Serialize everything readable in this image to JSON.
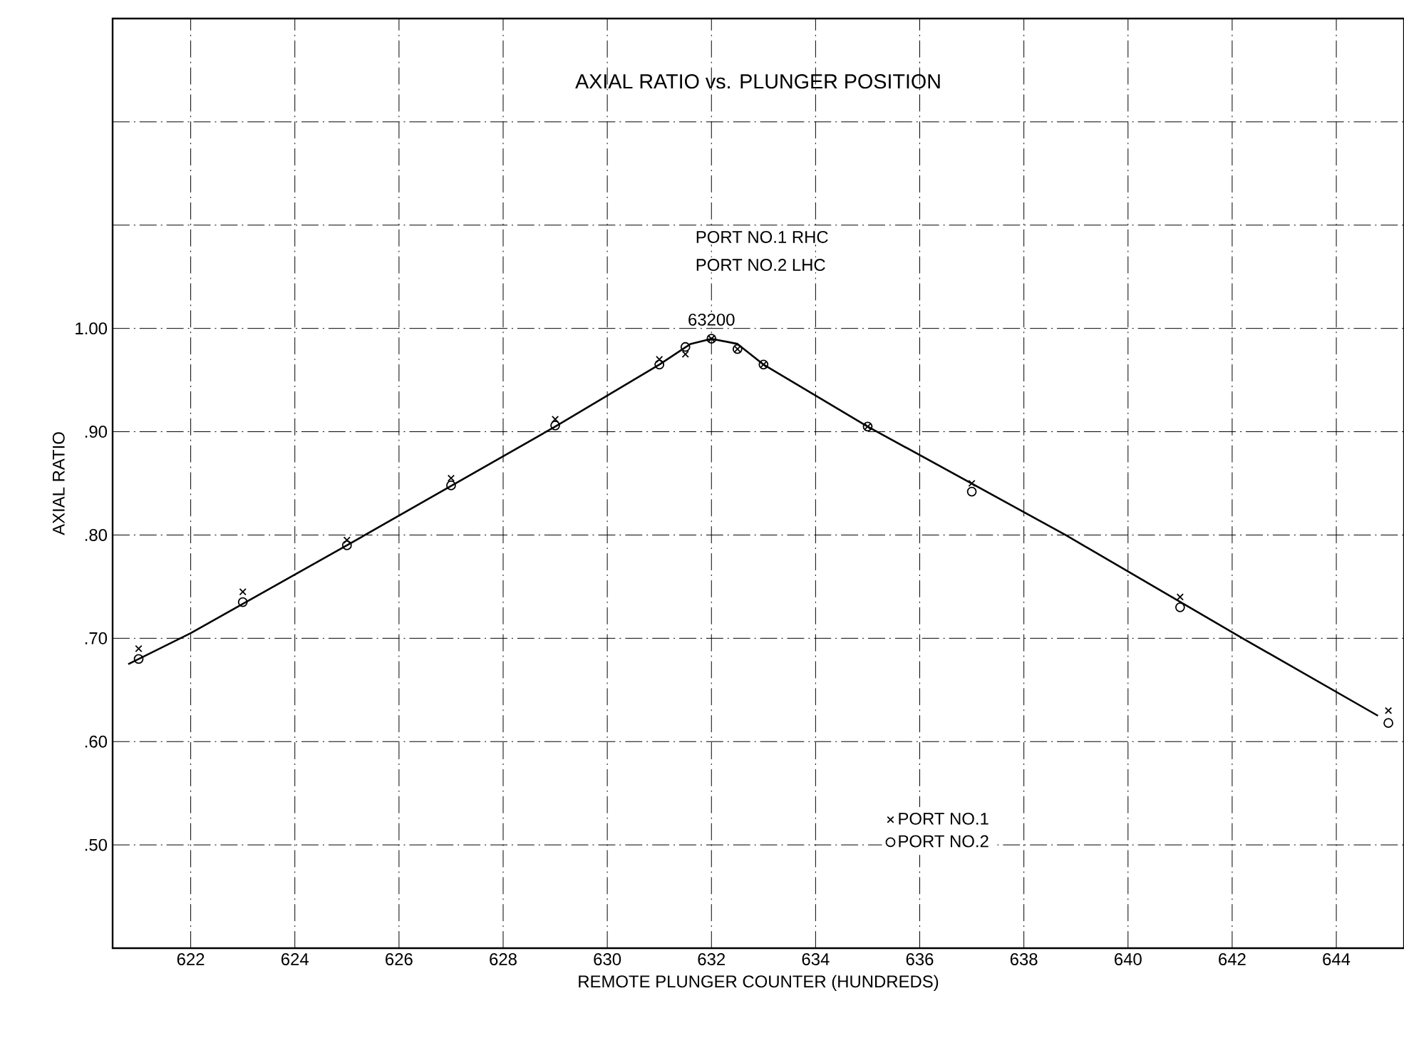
{
  "chart_data": {
    "type": "scatter",
    "title": "AXIAL RATIO vs. PLUNGER POSITION",
    "xlabel": "REMOTE PLUNGER COUNTER (HUNDREDS)",
    "ylabel": "AXIAL RATIO",
    "xlim": [
      620.5,
      645.3
    ],
    "ylim": [
      0.4,
      1.3
    ],
    "xticks": [
      622,
      624,
      626,
      628,
      630,
      632,
      634,
      636,
      638,
      640,
      642,
      644
    ],
    "yticks": [
      {
        "value": 0.5,
        "label": ".50"
      },
      {
        "value": 0.6,
        "label": ".60"
      },
      {
        "value": 0.7,
        "label": ".70"
      },
      {
        "value": 0.8,
        "label": ".80"
      },
      {
        "value": 0.9,
        "label": ".90"
      },
      {
        "value": 1.0,
        "label": "1.00"
      },
      {
        "value": 1.1,
        "label": null
      },
      {
        "value": 1.2,
        "label": null
      }
    ],
    "grid": true,
    "legend": "bottom",
    "annotations": [
      "PORT NO.1 RHC",
      "PORT NO.2 LHC",
      {
        "text": "63200",
        "x": 632,
        "y": 0.99
      }
    ],
    "series": [
      {
        "name": "PORT NO.1",
        "marker": "cross",
        "color": "#000000",
        "x": [
          621,
          623,
          625,
          627,
          629,
          631,
          631.5,
          632,
          632.5,
          633,
          635,
          637,
          641,
          645
        ],
        "values": [
          0.69,
          0.745,
          0.795,
          0.855,
          0.912,
          0.97,
          0.975,
          0.99,
          0.98,
          0.965,
          0.905,
          0.85,
          0.74,
          0.63
        ]
      },
      {
        "name": "PORT NO.2",
        "marker": "circle",
        "color": "#000000",
        "x": [
          621,
          623,
          625,
          627,
          629,
          631,
          631.5,
          632,
          632.5,
          633,
          635,
          637,
          641,
          645
        ],
        "values": [
          0.68,
          0.735,
          0.79,
          0.848,
          0.906,
          0.965,
          0.982,
          0.99,
          0.98,
          0.965,
          0.905,
          0.842,
          0.73,
          0.618
        ]
      },
      {
        "type": "line",
        "marker": "none",
        "line_style": "solid",
        "color": "#000000",
        "x": [
          620.8,
          622,
          625,
          629,
          631,
          631.6,
          632,
          632.5,
          633,
          635,
          638.8,
          642.2,
          644.8
        ],
        "values": [
          0.675,
          0.705,
          0.79,
          0.905,
          0.965,
          0.985,
          0.99,
          0.985,
          0.965,
          0.905,
          0.8,
          0.7,
          0.625
        ]
      }
    ]
  }
}
